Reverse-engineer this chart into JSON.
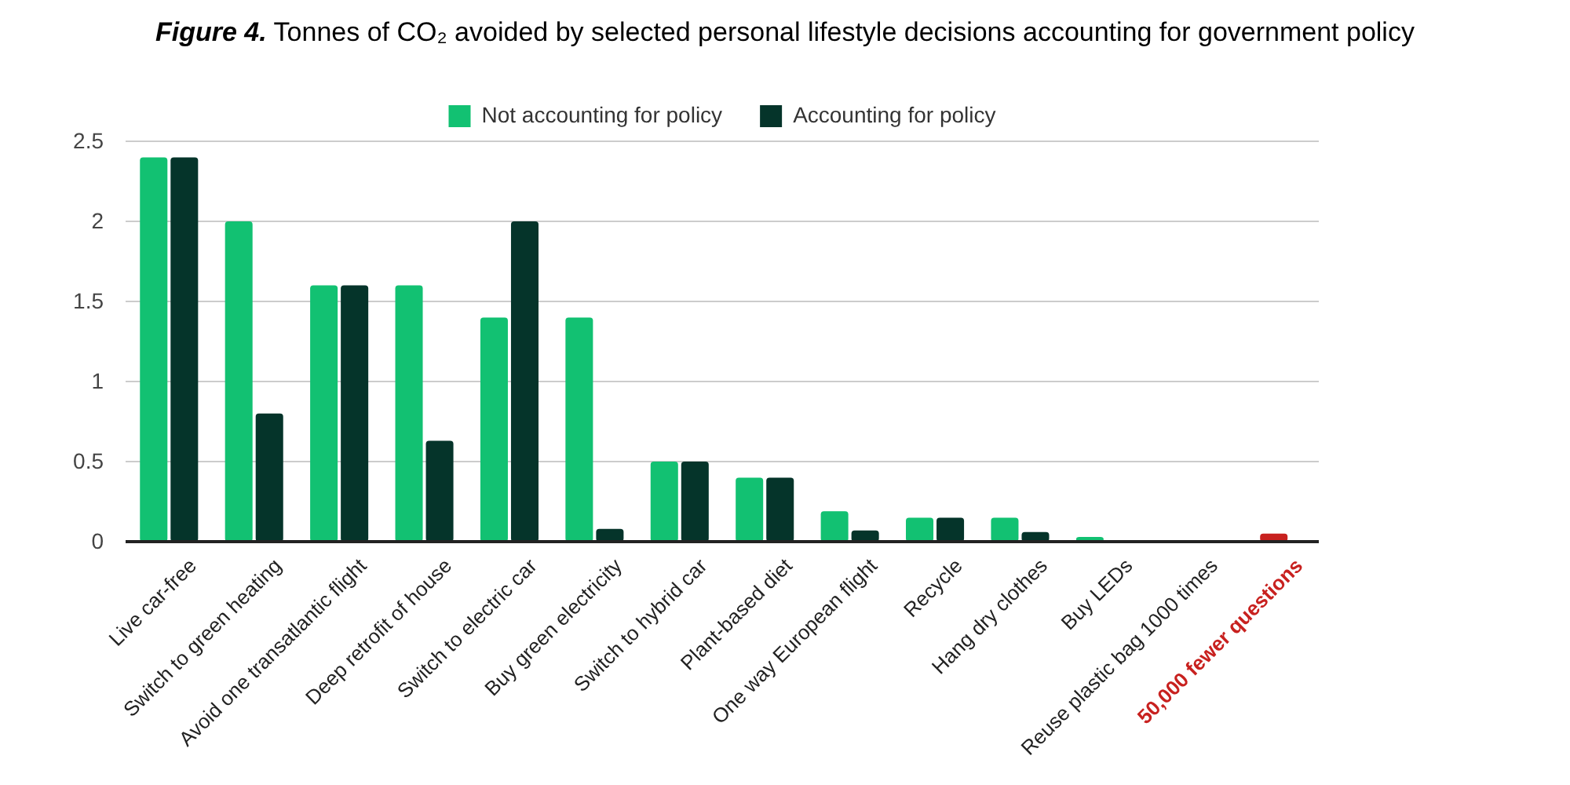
{
  "chart_data": {
    "type": "bar",
    "title": "Figure 4. Tonnes of CO₂ avoided by selected personal lifestyle decisions accounting for government policy",
    "categories": [
      "Live car-free",
      "Switch to green heating",
      "Avoid one transatlantic flight",
      "Deep retrofit of house",
      "Switch to electric car",
      "Buy green electricity",
      "Switch to hybrid car",
      "Plant-based diet",
      "One way European flight",
      "Recycle",
      "Hang dry clothes",
      "Buy LEDs",
      "Reuse plastic bag 1000 times",
      "50,000 fewer questions"
    ],
    "series": [
      {
        "name": "Not accounting for policy",
        "color": "#12c172",
        "colors": [
          "#12c172",
          "#12c172",
          "#12c172",
          "#12c172",
          "#12c172",
          "#12c172",
          "#12c172",
          "#12c172",
          "#12c172",
          "#12c172",
          "#12c172",
          "#12c172",
          "#12c172",
          "#c8211f"
        ],
        "values": [
          2.4,
          2,
          1.6,
          1.6,
          1.4,
          1.4,
          0.5,
          0.4,
          0.19,
          0.15,
          0.15,
          0.03,
          0,
          0.05
        ]
      },
      {
        "name": "Accounting for policy",
        "color": "#05342a",
        "values": [
          2.4,
          0.8,
          1.6,
          0.63,
          2,
          0.08,
          0.5,
          0.4,
          0.07,
          0.15,
          0.06,
          0,
          0,
          null
        ]
      }
    ],
    "ylim": [
      0,
      2.5
    ],
    "yticks": [
      0,
      0.5,
      1,
      1.5,
      2,
      2.5
    ],
    "grid": "y",
    "legend": "top"
  }
}
